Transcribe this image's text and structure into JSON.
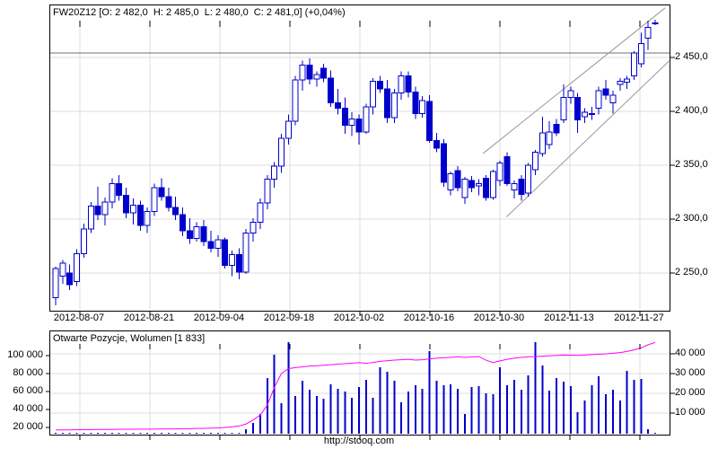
{
  "header": {
    "title": "FW20Z12 [O: 2 482,0  H: 2 485,0  L: 2 480,0  C: 2 481,0] (+0,04%)"
  },
  "footer": {
    "url": "http://stooq.com"
  },
  "colors": {
    "candle_blue": "#0000cc",
    "open_positions_line": "#ff00ff",
    "grid": "#dcdcdc",
    "channel_line": "#999999",
    "resistance_line": "#6f6f6f",
    "border": "#000000",
    "text": "#000000"
  },
  "chart_data": [
    {
      "type": "candlestick",
      "title": "FW20Z12 [O: 2 482,0  H: 2 485,0  L: 2 480,0  C: 2 481,0] (+0,04%)",
      "symbol": "FW20Z12",
      "quote": {
        "open": "2 482,0",
        "high": "2 485,0",
        "low": "2 480,0",
        "close": "2 481,0",
        "change_pct": "+0,04%"
      },
      "y_axis": {
        "side": "right",
        "labels": [
          "2 450,0",
          "2 400,0",
          "2 350,0",
          "2 300,0",
          "2 250,0"
        ],
        "values": [
          2450,
          2400,
          2350,
          2300,
          2250
        ]
      },
      "x_axis": {
        "labels": [
          "2012-08-07",
          "2012-08-21",
          "2012-09-04",
          "2012-09-18",
          "2012-10-02",
          "2012-10-16",
          "2012-10-30",
          "2012-11-13",
          "2012-11-27"
        ]
      },
      "ylim": [
        2215,
        2498
      ],
      "grid": true,
      "last_quote_marker": {
        "style": "cross",
        "value": 2481
      },
      "annotations": {
        "horizontal_resistance_price": 2454,
        "trend_channel": {
          "upper": [
            {
              "session": 60.6,
              "price": 2361
            },
            {
              "session": 86.4,
              "price": 2496
            }
          ],
          "lower": [
            {
              "session": 63.9,
              "price": 2302
            },
            {
              "session": 87.0,
              "price": 2447
            }
          ]
        }
      },
      "candles_ohlc": [
        [
          2227,
          2256,
          2220,
          2254
        ],
        [
          2247,
          2262,
          2240,
          2259
        ],
        [
          2250,
          2258,
          2234,
          2239
        ],
        [
          2242,
          2272,
          2238,
          2268
        ],
        [
          2268,
          2296,
          2264,
          2291
        ],
        [
          2291,
          2316,
          2287,
          2312
        ],
        [
          2312,
          2330,
          2299,
          2304
        ],
        [
          2304,
          2320,
          2294,
          2316
        ],
        [
          2316,
          2338,
          2310,
          2333
        ],
        [
          2333,
          2341,
          2317,
          2322
        ],
        [
          2322,
          2329,
          2301,
          2306
        ],
        [
          2306,
          2319,
          2295,
          2313
        ],
        [
          2313,
          2317,
          2289,
          2294
        ],
        [
          2294,
          2311,
          2287,
          2307
        ],
        [
          2307,
          2333,
          2303,
          2329
        ],
        [
          2329,
          2338,
          2317,
          2321
        ],
        [
          2321,
          2329,
          2307,
          2311
        ],
        [
          2311,
          2321,
          2299,
          2304
        ],
        [
          2304,
          2311,
          2284,
          2289
        ],
        [
          2289,
          2301,
          2277,
          2282
        ],
        [
          2282,
          2297,
          2279,
          2293
        ],
        [
          2293,
          2299,
          2275,
          2279
        ],
        [
          2279,
          2289,
          2269,
          2273
        ],
        [
          2273,
          2285,
          2265,
          2281
        ],
        [
          2281,
          2283,
          2254,
          2257
        ],
        [
          2257,
          2271,
          2247,
          2267
        ],
        [
          2267,
          2273,
          2244,
          2251
        ],
        [
          2251,
          2291,
          2249,
          2287
        ],
        [
          2287,
          2301,
          2279,
          2297
        ],
        [
          2297,
          2319,
          2291,
          2315
        ],
        [
          2315,
          2341,
          2309,
          2337
        ],
        [
          2337,
          2353,
          2329,
          2349
        ],
        [
          2349,
          2379,
          2343,
          2375
        ],
        [
          2375,
          2397,
          2369,
          2391
        ],
        [
          2391,
          2433,
          2387,
          2429
        ],
        [
          2429,
          2447,
          2419,
          2443
        ],
        [
          2443,
          2449,
          2425,
          2430
        ],
        [
          2430,
          2437,
          2423,
          2434
        ],
        [
          2440,
          2444,
          2427,
          2431
        ],
        [
          2431,
          2438,
          2404,
          2408
        ],
        [
          2408,
          2421,
          2397,
          2403
        ],
        [
          2403,
          2413,
          2379,
          2387
        ],
        [
          2387,
          2399,
          2377,
          2393
        ],
        [
          2393,
          2397,
          2369,
          2381
        ],
        [
          2381,
          2407,
          2379,
          2404
        ],
        [
          2404,
          2431,
          2397,
          2428
        ],
        [
          2428,
          2433,
          2417,
          2421
        ],
        [
          2421,
          2429,
          2389,
          2394
        ],
        [
          2394,
          2421,
          2389,
          2417
        ],
        [
          2417,
          2437,
          2411,
          2433
        ],
        [
          2433,
          2437,
          2413,
          2418
        ],
        [
          2418,
          2423,
          2393,
          2398
        ],
        [
          2398,
          2414,
          2394,
          2410
        ],
        [
          2409,
          2415,
          2371,
          2373
        ],
        [
          2373,
          2380,
          2362,
          2366
        ],
        [
          2370,
          2374,
          2330,
          2334
        ],
        [
          2327,
          2344,
          2322,
          2342
        ],
        [
          2345,
          2349,
          2326,
          2329
        ],
        [
          2320,
          2339,
          2314,
          2337
        ],
        [
          2336,
          2340,
          2325,
          2329
        ],
        [
          2331,
          2337,
          2322,
          2333
        ],
        [
          2338,
          2341,
          2317,
          2320
        ],
        [
          2320,
          2346,
          2318,
          2344
        ],
        [
          2336,
          2354,
          2331,
          2352
        ],
        [
          2358,
          2362,
          2331,
          2333
        ],
        [
          2327,
          2336,
          2319,
          2333
        ],
        [
          2337,
          2341,
          2317,
          2323
        ],
        [
          2324,
          2352,
          2321,
          2350
        ],
        [
          2346,
          2364,
          2341,
          2362
        ],
        [
          2361,
          2395,
          2358,
          2380
        ],
        [
          2369,
          2391,
          2365,
          2381
        ],
        [
          2388,
          2393,
          2377,
          2380
        ],
        [
          2392,
          2425,
          2389,
          2413
        ],
        [
          2413,
          2423,
          2407,
          2419
        ],
        [
          2413,
          2417,
          2380,
          2392
        ],
        [
          2395,
          2403,
          2389,
          2399
        ],
        [
          2398,
          2404,
          2392,
          2397
        ],
        [
          2403,
          2423,
          2397,
          2419
        ],
        [
          2421,
          2429,
          2411,
          2415
        ],
        [
          2408,
          2419,
          2398,
          2415
        ],
        [
          2425,
          2431,
          2419,
          2428
        ],
        [
          2427,
          2433,
          2421,
          2430
        ],
        [
          2433,
          2456,
          2429,
          2454
        ],
        [
          2444,
          2473,
          2441,
          2463
        ],
        [
          2468,
          2484,
          2457,
          2478
        ],
        [
          2482,
          2485,
          2480,
          2481
        ]
      ]
    },
    {
      "type": "bar+line",
      "title": "Otwarte Pozycje, Wolumen [1 833]",
      "series_names": {
        "bars": "Wolumen",
        "line": "Otwarte Pozycje"
      },
      "left_axis": {
        "labels": [
          "100 000",
          "80 000",
          "60 000",
          "40 000",
          "20 000"
        ],
        "values": [
          100000,
          80000,
          60000,
          40000,
          20000
        ],
        "applies_to": "bars"
      },
      "right_axis": {
        "labels": [
          "40 000",
          "30 000",
          "20 000",
          "10 000"
        ],
        "values": [
          40000,
          30000,
          20000,
          10000
        ],
        "applies_to": "line"
      },
      "volume_bars": [
        1500,
        1000,
        1000,
        1500,
        1000,
        1000,
        1500,
        1000,
        1000,
        1000,
        1500,
        1000,
        1000,
        1500,
        1000,
        1000,
        1500,
        1000,
        1000,
        1500,
        2000,
        2000,
        3000,
        3000,
        5000,
        8000,
        12000,
        18000,
        25000,
        35000,
        75000,
        101000,
        47000,
        115000,
        55000,
        72000,
        62000,
        55000,
        52000,
        68000,
        63000,
        60000,
        53000,
        65000,
        73000,
        53000,
        87000,
        82000,
        72000,
        48000,
        60000,
        67000,
        63000,
        105000,
        72000,
        67000,
        68000,
        63000,
        35000,
        65000,
        66000,
        58000,
        57000,
        87000,
        67000,
        73000,
        62000,
        78000,
        115000,
        89000,
        61000,
        75000,
        71000,
        66000,
        37000,
        50000,
        67000,
        77000,
        57000,
        62000,
        50000,
        83000,
        73000,
        74000,
        18000,
        2000
      ],
      "open_positions": [
        1500,
        1500,
        1500,
        1600,
        1600,
        1600,
        1700,
        1700,
        1700,
        1800,
        1800,
        1800,
        1900,
        1900,
        1900,
        2000,
        2000,
        2000,
        2100,
        2100,
        2200,
        2300,
        2400,
        2500,
        2700,
        3000,
        3500,
        4500,
        6500,
        9000,
        14000,
        23000,
        30000,
        32500,
        33000,
        33400,
        33800,
        34000,
        34200,
        34500,
        34800,
        35000,
        35300,
        35500,
        35200,
        35600,
        36200,
        36500,
        36800,
        37000,
        37200,
        36800,
        37000,
        37400,
        37800,
        38000,
        38200,
        38500,
        38200,
        38400,
        38600,
        36800,
        35600,
        36400,
        37200,
        37800,
        38200,
        38500,
        38600,
        38800,
        39000,
        39200,
        39400,
        39300,
        39200,
        39400,
        39600,
        39800,
        40000,
        40300,
        40600,
        41200,
        42000,
        43000,
        44600,
        45800
      ]
    }
  ]
}
